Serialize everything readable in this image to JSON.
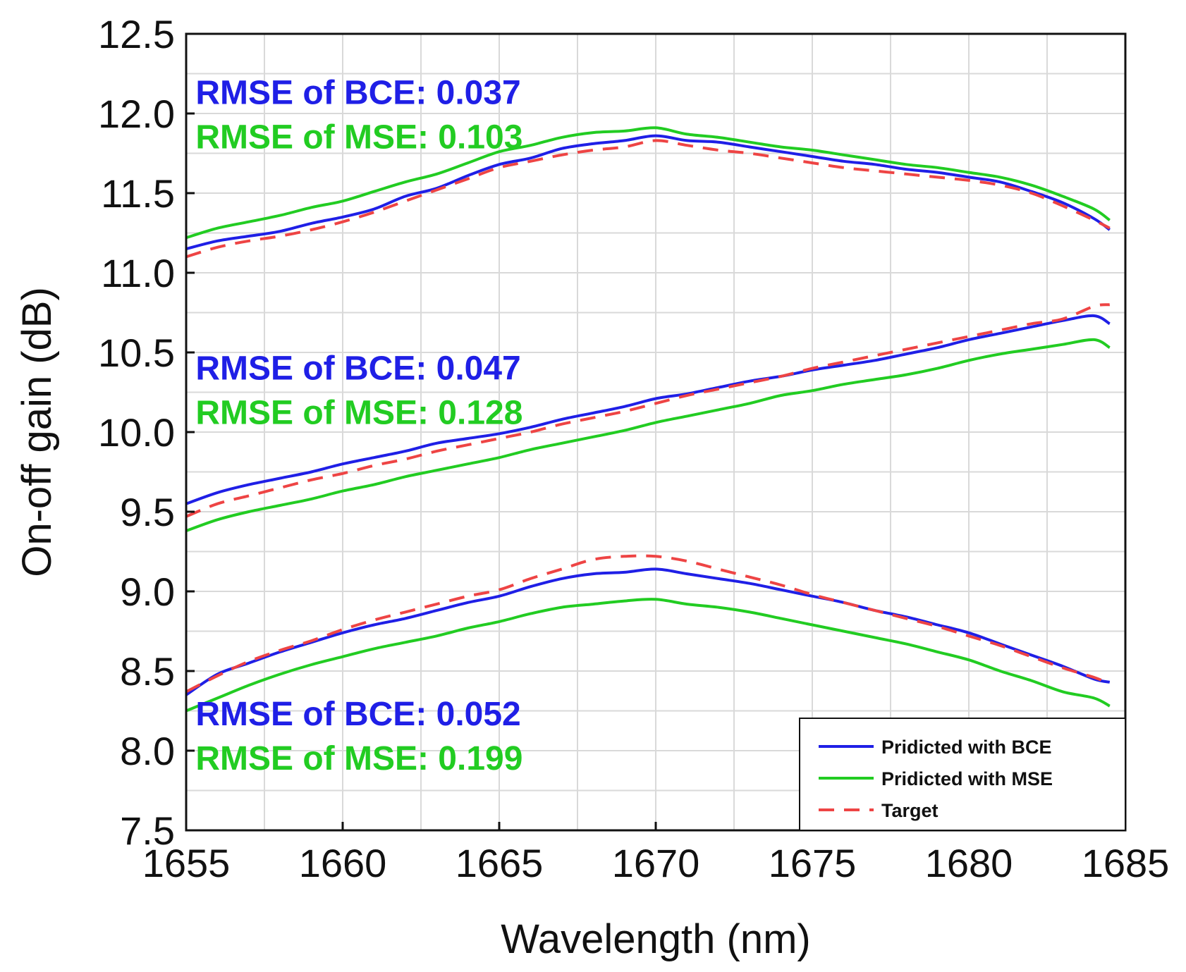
{
  "chart_data": {
    "type": "line",
    "title": "",
    "xlabel": "Wavelength (nm)",
    "ylabel": "On-off gain (dB)",
    "xlim": [
      1655,
      1685
    ],
    "ylim": [
      7.5,
      12.5
    ],
    "xticks": [
      1655,
      1660,
      1665,
      1670,
      1675,
      1680,
      1685
    ],
    "xtick_labels": [
      "1655",
      "1660",
      "1665",
      "1670",
      "1675",
      "1680",
      "1685"
    ],
    "yticks": [
      7.5,
      8.0,
      8.5,
      9.0,
      9.5,
      10.0,
      10.5,
      11.0,
      11.5,
      12.0,
      12.5
    ],
    "ytick_labels": [
      "7.5",
      "8.0",
      "8.5",
      "9.0",
      "9.5",
      "10.0",
      "10.5",
      "11.0",
      "11.5",
      "12.0",
      "12.5"
    ],
    "grid": true,
    "legend_position": "bottom-right",
    "legend": [
      {
        "label": "Pridicted with BCE",
        "color": "#1f1fe6",
        "style": "solid"
      },
      {
        "label": "Pridicted with MSE",
        "color": "#22cc22",
        "style": "solid"
      },
      {
        "label": "Target",
        "color": "#ee4444",
        "style": "dashed"
      }
    ],
    "annotations": [
      {
        "text": "RMSE of BCE: 0.037",
        "color": "#1f1fe6",
        "x": 1655.3,
        "y": 12.06
      },
      {
        "text": "RMSE of MSE: 0.103",
        "color": "#22cc22",
        "x": 1655.3,
        "y": 11.78
      },
      {
        "text": "RMSE of BCE: 0.047",
        "color": "#1f1fe6",
        "x": 1655.3,
        "y": 10.33
      },
      {
        "text": "RMSE of MSE: 0.128",
        "color": "#22cc22",
        "x": 1655.3,
        "y": 10.05
      },
      {
        "text": "RMSE of BCE: 0.052",
        "color": "#1f1fe6",
        "x": 1655.3,
        "y": 8.16
      },
      {
        "text": "RMSE of MSE: 0.199",
        "color": "#22cc22",
        "x": 1655.3,
        "y": 7.88
      }
    ],
    "x": [
      1655,
      1656,
      1657,
      1658,
      1659,
      1660,
      1661,
      1662,
      1663,
      1664,
      1665,
      1666,
      1667,
      1668,
      1669,
      1670,
      1671,
      1672,
      1673,
      1674,
      1675,
      1676,
      1677,
      1678,
      1679,
      1680,
      1681,
      1682,
      1683,
      1684,
      1684.5
    ],
    "series": [
      {
        "group": 1,
        "legend": 0,
        "values": [
          11.15,
          11.2,
          11.23,
          11.26,
          11.31,
          11.35,
          11.4,
          11.48,
          11.53,
          11.61,
          11.68,
          11.72,
          11.78,
          11.81,
          11.83,
          11.86,
          11.83,
          11.82,
          11.79,
          11.76,
          11.73,
          11.7,
          11.68,
          11.65,
          11.63,
          11.6,
          11.57,
          11.51,
          11.44,
          11.34,
          11.27
        ]
      },
      {
        "group": 1,
        "legend": 1,
        "values": [
          11.22,
          11.28,
          11.32,
          11.36,
          11.41,
          11.45,
          11.51,
          11.57,
          11.62,
          11.69,
          11.76,
          11.8,
          11.85,
          11.88,
          11.89,
          11.91,
          11.87,
          11.85,
          11.82,
          11.79,
          11.77,
          11.74,
          11.71,
          11.68,
          11.66,
          11.63,
          11.6,
          11.55,
          11.48,
          11.4,
          11.33
        ]
      },
      {
        "group": 1,
        "legend": 2,
        "values": [
          11.1,
          11.16,
          11.2,
          11.23,
          11.27,
          11.32,
          11.38,
          11.45,
          11.52,
          11.59,
          11.66,
          11.7,
          11.74,
          11.77,
          11.79,
          11.83,
          11.8,
          11.77,
          11.75,
          11.72,
          11.69,
          11.66,
          11.64,
          11.62,
          11.6,
          11.58,
          11.55,
          11.5,
          11.42,
          11.33,
          11.28
        ]
      },
      {
        "group": 2,
        "legend": 0,
        "values": [
          9.55,
          9.62,
          9.67,
          9.71,
          9.75,
          9.8,
          9.84,
          9.88,
          9.93,
          9.96,
          9.99,
          10.03,
          10.08,
          10.12,
          10.16,
          10.21,
          10.24,
          10.28,
          10.32,
          10.35,
          10.39,
          10.42,
          10.45,
          10.49,
          10.53,
          10.58,
          10.62,
          10.66,
          10.7,
          10.73,
          10.68
        ]
      },
      {
        "group": 2,
        "legend": 1,
        "values": [
          9.38,
          9.45,
          9.5,
          9.54,
          9.58,
          9.63,
          9.67,
          9.72,
          9.76,
          9.8,
          9.84,
          9.89,
          9.93,
          9.97,
          10.01,
          10.06,
          10.1,
          10.14,
          10.18,
          10.23,
          10.26,
          10.3,
          10.33,
          10.36,
          10.4,
          10.45,
          10.49,
          10.52,
          10.55,
          10.58,
          10.53
        ]
      },
      {
        "group": 2,
        "legend": 2,
        "values": [
          9.47,
          9.55,
          9.6,
          9.65,
          9.7,
          9.74,
          9.79,
          9.83,
          9.88,
          9.92,
          9.96,
          10.0,
          10.05,
          10.09,
          10.13,
          10.18,
          10.23,
          10.27,
          10.31,
          10.35,
          10.4,
          10.44,
          10.48,
          10.52,
          10.56,
          10.6,
          10.64,
          10.68,
          10.71,
          10.79,
          10.8
        ]
      },
      {
        "group": 3,
        "legend": 0,
        "values": [
          8.35,
          8.48,
          8.55,
          8.62,
          8.68,
          8.74,
          8.79,
          8.83,
          8.88,
          8.93,
          8.97,
          9.03,
          9.08,
          9.11,
          9.12,
          9.14,
          9.11,
          9.08,
          9.05,
          9.01,
          8.97,
          8.93,
          8.88,
          8.84,
          8.79,
          8.74,
          8.67,
          8.6,
          8.53,
          8.45,
          8.43
        ]
      },
      {
        "group": 3,
        "legend": 1,
        "values": [
          8.25,
          8.33,
          8.41,
          8.48,
          8.54,
          8.59,
          8.64,
          8.68,
          8.72,
          8.77,
          8.81,
          8.86,
          8.9,
          8.92,
          8.94,
          8.95,
          8.92,
          8.9,
          8.87,
          8.83,
          8.79,
          8.75,
          8.71,
          8.67,
          8.62,
          8.57,
          8.5,
          8.44,
          8.37,
          8.33,
          8.28
        ]
      },
      {
        "group": 3,
        "legend": 2,
        "values": [
          8.37,
          8.47,
          8.56,
          8.63,
          8.69,
          8.76,
          8.82,
          8.87,
          8.92,
          8.97,
          9.01,
          9.08,
          9.14,
          9.2,
          9.22,
          9.22,
          9.19,
          9.14,
          9.09,
          9.04,
          8.98,
          8.93,
          8.88,
          8.83,
          8.78,
          8.72,
          8.66,
          8.59,
          8.52,
          8.46,
          8.42
        ]
      }
    ]
  }
}
